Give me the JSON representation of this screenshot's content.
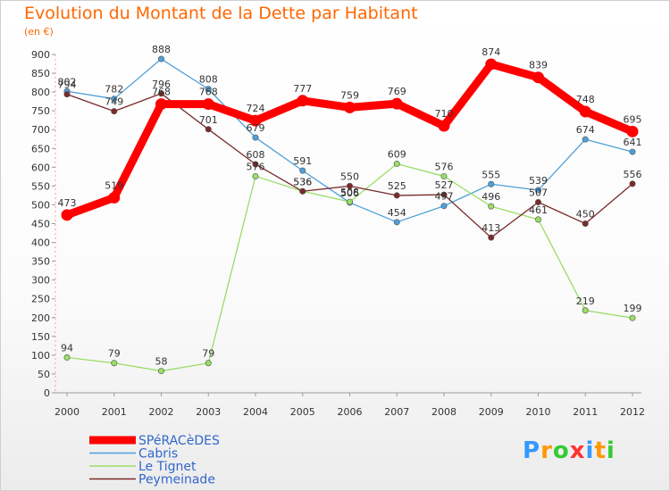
{
  "title": "Evolution du Montant de la Dette par Habitant",
  "subtitle": "(en €)",
  "logo": {
    "text": "Proxiti",
    "letter_colors": [
      "#3399ff",
      "#ff9900",
      "#33cc33",
      "#ff3333",
      "#3399ff",
      "#ff9900",
      "#33cc33"
    ]
  },
  "chart_data": {
    "type": "line",
    "x": [
      "2000",
      "2001",
      "2002",
      "2003",
      "2004",
      "2005",
      "2006",
      "2007",
      "2008",
      "2009",
      "2010",
      "2011",
      "2012"
    ],
    "ylim": [
      0,
      900
    ],
    "yticks": [
      "0",
      "50",
      "100",
      "150",
      "200",
      "250",
      "300",
      "350",
      "400",
      "450",
      "500",
      "550",
      "600",
      "650",
      "700",
      "750",
      "800",
      "850",
      "900"
    ],
    "grid": false,
    "legend_position": "bottom-left",
    "series": [
      {
        "name": "SPéRACèDES",
        "color": "#ff0000",
        "values": [
          473,
          519,
          768,
          768,
          724,
          777,
          759,
          769,
          710,
          874,
          839,
          748,
          695
        ],
        "labels": [
          "473",
          "519",
          "768",
          "768",
          "724",
          "777",
          "759",
          "769",
          "710",
          "874",
          "839",
          "748",
          "695"
        ]
      },
      {
        "name": "Cabris",
        "color": "#4f9fd9",
        "values": [
          802,
          782,
          888,
          808,
          679,
          591,
          506,
          454,
          497,
          555,
          539,
          674,
          641
        ],
        "labels": [
          "802",
          "782",
          "888",
          "808",
          "679",
          "591",
          "506",
          "454",
          "497",
          "555",
          "539",
          "674",
          "641"
        ]
      },
      {
        "name": "Le Tignet",
        "color": "#99dd66",
        "values": [
          94,
          79,
          58,
          79,
          576,
          536,
          508,
          609,
          576,
          496,
          461,
          219,
          199
        ],
        "labels": [
          "94",
          "79",
          "58",
          "79",
          "576",
          "536",
          "508",
          "609",
          "576",
          "496",
          "461",
          "219",
          "199"
        ]
      },
      {
        "name": "Peymeinade",
        "color": "#7a2a2a",
        "values": [
          794,
          749,
          796,
          701,
          608,
          536,
          550,
          525,
          527,
          413,
          507,
          450,
          556
        ],
        "labels": [
          "794",
          "749",
          "796",
          "701",
          "608",
          "536",
          "550",
          "525",
          "527",
          "413",
          "507",
          "450",
          "556"
        ]
      }
    ]
  }
}
